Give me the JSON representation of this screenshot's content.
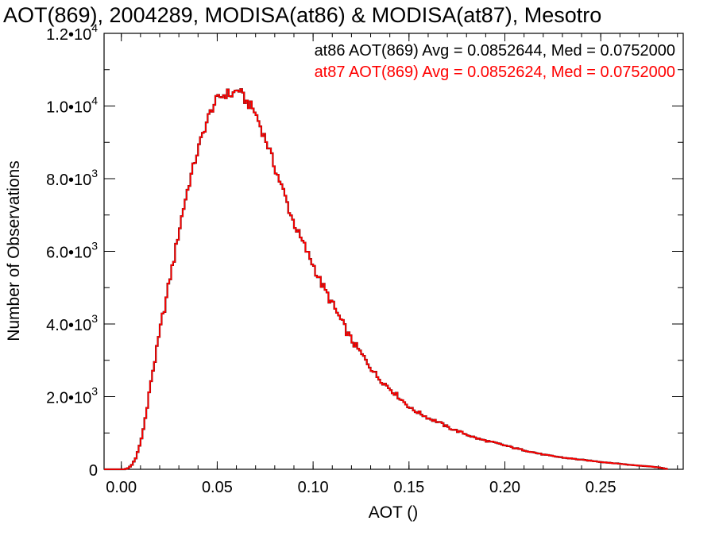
{
  "chart_data": {
    "type": "step-histogram",
    "title": "AOT(869), 2004289, MODISA(at86) & MODISA(at87), Mesotro",
    "xlabel": "AOT ()",
    "ylabel": "Number of Observations",
    "xlim": [
      -0.009,
      0.293
    ],
    "ylim": [
      0,
      12000
    ],
    "x_ticks": [
      {
        "value": 0.0,
        "label": "0.00"
      },
      {
        "value": 0.05,
        "label": "0.05"
      },
      {
        "value": 0.1,
        "label": "0.10"
      },
      {
        "value": 0.15,
        "label": "0.15"
      },
      {
        "value": 0.2,
        "label": "0.20"
      },
      {
        "value": 0.25,
        "label": "0.25"
      }
    ],
    "y_ticks": [
      {
        "value": 0,
        "mantissa": "0",
        "exponent": ""
      },
      {
        "value": 2000,
        "mantissa": "2.0•10",
        "exponent": "3"
      },
      {
        "value": 4000,
        "mantissa": "4.0•10",
        "exponent": "3"
      },
      {
        "value": 6000,
        "mantissa": "6.0•10",
        "exponent": "3"
      },
      {
        "value": 8000,
        "mantissa": "8.0•10",
        "exponent": "3"
      },
      {
        "value": 10000,
        "mantissa": "1.0•10",
        "exponent": "4"
      },
      {
        "value": 12000,
        "mantissa": "1.2•10",
        "exponent": "4"
      }
    ],
    "grid": false,
    "bin_width": 0.001,
    "x": [
      -0.009,
      0.001,
      0.003,
      0.005,
      0.007,
      0.009,
      0.011,
      0.013,
      0.015,
      0.017,
      0.019,
      0.021,
      0.023,
      0.025,
      0.027,
      0.029,
      0.031,
      0.033,
      0.035,
      0.037,
      0.039,
      0.041,
      0.043,
      0.045,
      0.047,
      0.049,
      0.051,
      0.053,
      0.055,
      0.057,
      0.059,
      0.061,
      0.063,
      0.065,
      0.067,
      0.069,
      0.071,
      0.073,
      0.075,
      0.077,
      0.079,
      0.081,
      0.083,
      0.085,
      0.087,
      0.089,
      0.091,
      0.093,
      0.095,
      0.097,
      0.099,
      0.101,
      0.103,
      0.105,
      0.107,
      0.109,
      0.111,
      0.113,
      0.115,
      0.117,
      0.119,
      0.121,
      0.123,
      0.125,
      0.127,
      0.129,
      0.131,
      0.133,
      0.135,
      0.137,
      0.139,
      0.141,
      0.143,
      0.145,
      0.147,
      0.149,
      0.151,
      0.155,
      0.16,
      0.165,
      0.17,
      0.175,
      0.18,
      0.185,
      0.19,
      0.195,
      0.2,
      0.205,
      0.21,
      0.215,
      0.22,
      0.225,
      0.23,
      0.235,
      0.24,
      0.245,
      0.25,
      0.255,
      0.26,
      0.265,
      0.27,
      0.275,
      0.28,
      0.285,
      0.29,
      0.293
    ],
    "series": [
      {
        "name": "at86",
        "color": "#000000",
        "values": [
          0,
          0,
          30,
          120,
          300,
          650,
          1100,
          1700,
          2450,
          3000,
          3600,
          4200,
          4700,
          5300,
          5800,
          6400,
          6950,
          7450,
          7900,
          8300,
          8700,
          9050,
          9400,
          9700,
          9950,
          10150,
          10250,
          10300,
          10350,
          10300,
          10400,
          10450,
          10250,
          10100,
          10000,
          9850,
          9600,
          9300,
          9050,
          8750,
          8400,
          8100,
          7800,
          7500,
          7150,
          6850,
          6600,
          6350,
          6150,
          5900,
          5700,
          5450,
          5200,
          5000,
          4800,
          4600,
          4400,
          4200,
          4000,
          3800,
          3600,
          3450,
          3300,
          3150,
          3000,
          2850,
          2700,
          2550,
          2450,
          2350,
          2250,
          2150,
          2050,
          1950,
          1850,
          1750,
          1650,
          1550,
          1400,
          1300,
          1150,
          1050,
          950,
          850,
          780,
          720,
          650,
          580,
          520,
          460,
          400,
          360,
          320,
          290,
          260,
          230,
          200,
          175,
          150,
          120,
          100,
          80,
          50,
          0
        ]
      },
      {
        "name": "at87",
        "color": "#ff0000",
        "values": [
          0,
          0,
          30,
          120,
          300,
          650,
          1100,
          1700,
          2450,
          3000,
          3600,
          4200,
          4700,
          5300,
          5800,
          6400,
          6950,
          7450,
          7900,
          8300,
          8700,
          9050,
          9400,
          9700,
          9950,
          10150,
          10250,
          10300,
          10350,
          10300,
          10400,
          10450,
          10250,
          10100,
          10000,
          9850,
          9600,
          9300,
          9050,
          8750,
          8400,
          8100,
          7800,
          7500,
          7150,
          6850,
          6600,
          6350,
          6150,
          5900,
          5700,
          5450,
          5200,
          5000,
          4800,
          4600,
          4400,
          4200,
          4000,
          3800,
          3600,
          3450,
          3300,
          3150,
          3000,
          2850,
          2700,
          2550,
          2450,
          2350,
          2250,
          2150,
          2050,
          1950,
          1850,
          1750,
          1650,
          1550,
          1400,
          1300,
          1150,
          1050,
          950,
          850,
          780,
          720,
          650,
          580,
          520,
          460,
          400,
          360,
          320,
          290,
          260,
          230,
          200,
          175,
          150,
          120,
          100,
          80,
          50,
          0
        ]
      }
    ],
    "annotations": [
      {
        "text": "at86 AOT(869) Avg = 0.0852644, Med = 0.0752000",
        "color": "#000000"
      },
      {
        "text": "at87 AOT(869) Avg = 0.0852624, Med = 0.0752000",
        "color": "#ff0000"
      }
    ],
    "legend_placement": "top-right"
  }
}
